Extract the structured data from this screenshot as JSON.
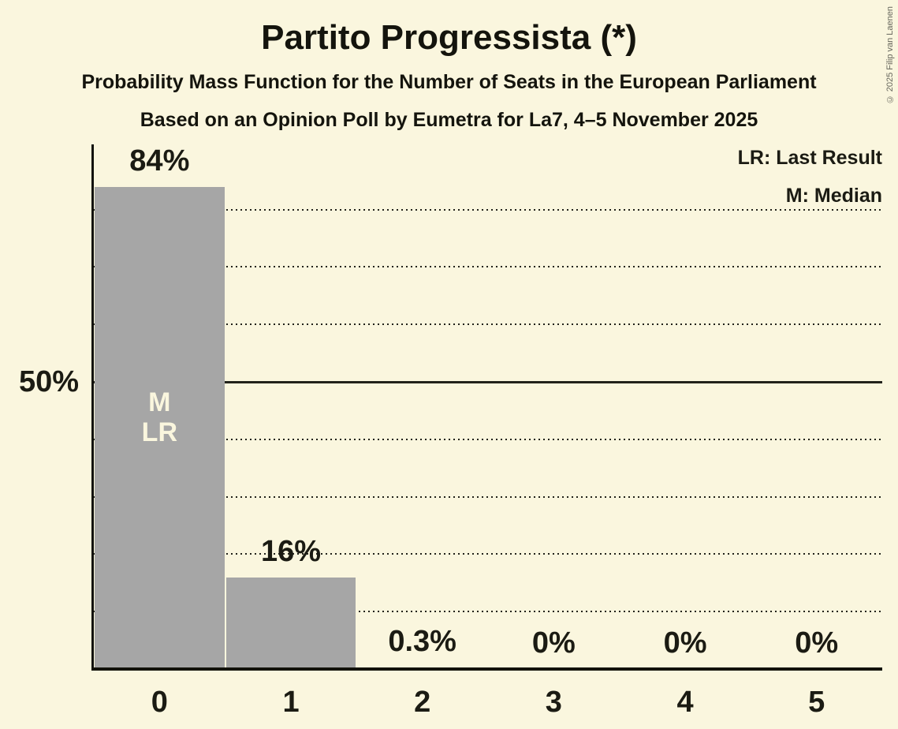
{
  "title": "Partito Progressista (*)",
  "subtitle": "Probability Mass Function for the Number of Seats in the European Parliament",
  "subsubtitle": "Based on an Opinion Poll by Eumetra for La7, 4–5 November 2025",
  "copyright": "© 2025 Filip van Laenen",
  "legend": {
    "last_result": "LR: Last Result",
    "median": "M: Median"
  },
  "y_axis": {
    "label": "50%"
  },
  "bar_annotation": {
    "line1": "M",
    "line2": "LR"
  },
  "colors": {
    "background": "#FAF6DE",
    "text": "#1B1B13",
    "bar": "#A6A6A6",
    "bar_label": "#FAF6DE"
  },
  "chart_data": {
    "type": "bar",
    "title": "Partito Progressista (*)",
    "categories": [
      "0",
      "1",
      "2",
      "3",
      "4",
      "5"
    ],
    "values": [
      84,
      16,
      0.3,
      0,
      0,
      0
    ],
    "value_labels": [
      "84%",
      "16%",
      "0.3%",
      "0%",
      "0%",
      "0%"
    ],
    "ylim": [
      0,
      91
    ],
    "y_tick_labels": [
      "50%"
    ],
    "gridlines_pct": [
      10,
      20,
      30,
      40,
      50,
      60,
      70,
      80
    ],
    "solid_gridline_pct": 50,
    "grid": "dotted horizontal lines, solid line at 50%",
    "legend_position": "top-right",
    "median_seat": "0",
    "last_result_seat": "0"
  }
}
